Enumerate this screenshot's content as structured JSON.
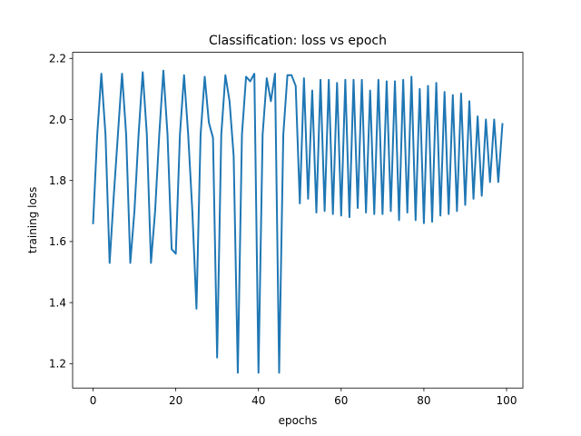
{
  "chart_data": {
    "type": "line",
    "title": "Classification: loss vs epoch",
    "xlabel": "epochs",
    "ylabel": "training loss",
    "xlim": [
      -4.95,
      103.95
    ],
    "ylim": [
      1.12,
      2.22
    ],
    "xticks": [
      0,
      20,
      40,
      60,
      80,
      100
    ],
    "yticks": [
      1.2,
      1.4,
      1.6,
      1.8,
      2.0,
      2.2
    ],
    "xtick_labels": [
      "0",
      "20",
      "40",
      "60",
      "80",
      "100"
    ],
    "ytick_labels": [
      "1.2",
      "1.4",
      "1.6",
      "1.8",
      "2.0",
      "2.2"
    ],
    "grid": false,
    "series": [
      {
        "color": "#1f77b4",
        "x": [
          0,
          1,
          2,
          3,
          4,
          5,
          6,
          7,
          8,
          9,
          10,
          11,
          12,
          13,
          14,
          15,
          16,
          17,
          18,
          19,
          20,
          21,
          22,
          23,
          24,
          25,
          26,
          27,
          28,
          29,
          30,
          31,
          32,
          33,
          34,
          35,
          36,
          37,
          38,
          39,
          40,
          41,
          42,
          43,
          44,
          45,
          46,
          47,
          48,
          49,
          50,
          51,
          52,
          53,
          54,
          55,
          56,
          57,
          58,
          59,
          60,
          61,
          62,
          63,
          64,
          65,
          66,
          67,
          68,
          69,
          70,
          71,
          72,
          73,
          74,
          75,
          76,
          77,
          78,
          79,
          80,
          81,
          82,
          83,
          84,
          85,
          86,
          87,
          88,
          89,
          90,
          91,
          92,
          93,
          94,
          95,
          96,
          97,
          98,
          99
        ],
        "y": [
          1.66,
          1.95,
          2.15,
          1.95,
          1.53,
          1.75,
          1.95,
          2.15,
          1.95,
          1.53,
          1.7,
          1.95,
          2.155,
          1.95,
          1.53,
          1.7,
          1.95,
          2.16,
          1.95,
          1.575,
          1.56,
          1.95,
          2.145,
          1.95,
          1.7,
          1.38,
          1.95,
          2.14,
          1.99,
          1.94,
          1.22,
          1.95,
          2.145,
          2.06,
          1.88,
          1.17,
          1.95,
          2.14,
          2.125,
          2.15,
          1.17,
          1.95,
          2.135,
          2.06,
          2.15,
          1.17,
          1.95,
          2.145,
          2.145,
          2.11,
          1.725,
          2.135,
          1.74,
          2.095,
          1.695,
          2.13,
          1.7,
          2.13,
          1.69,
          2.12,
          1.685,
          2.13,
          1.68,
          2.13,
          1.71,
          2.13,
          1.695,
          2.095,
          1.69,
          2.13,
          1.69,
          2.125,
          1.7,
          2.125,
          1.67,
          2.13,
          1.695,
          2.14,
          1.67,
          2.1,
          1.66,
          2.11,
          1.665,
          2.12,
          1.685,
          2.09,
          1.69,
          2.08,
          1.7,
          2.085,
          1.72,
          2.06,
          1.74,
          2.01,
          1.75,
          2.0,
          1.795,
          2.0,
          1.795,
          1.985
        ]
      }
    ]
  }
}
